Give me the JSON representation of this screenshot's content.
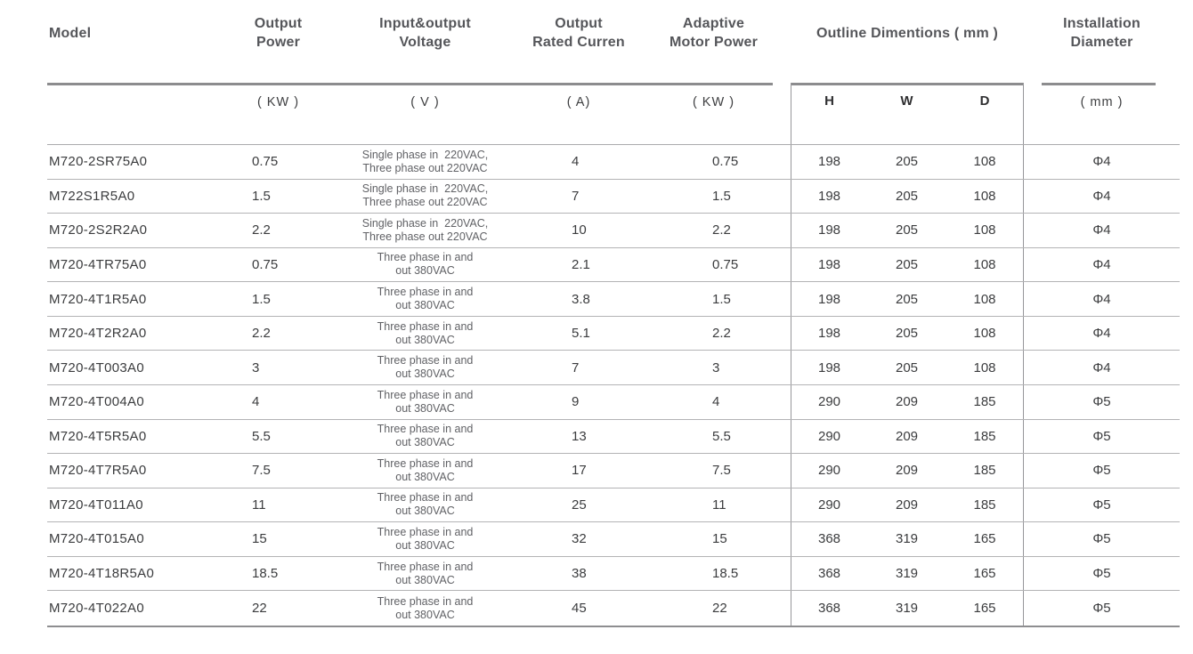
{
  "header": {
    "model": {
      "label": "Model"
    },
    "output_power": {
      "line1": "Output",
      "line2": "Power",
      "unit": "( KW )"
    },
    "io_voltage": {
      "line1": "Input&output",
      "line2": "Voltage",
      "unit": "( V )"
    },
    "rated_current": {
      "line1": "Output",
      "line2": "Rated Curren",
      "unit": "( A)"
    },
    "adaptive_power": {
      "line1": "Adaptive",
      "line2": "Motor Power",
      "unit": "( KW )"
    },
    "outline_dimensions": {
      "label": "Outline Dimentions ( mm )",
      "h": "H",
      "w": "W",
      "d": "D"
    },
    "installation": {
      "line1": "Installation",
      "line2": "Diameter",
      "unit": "( mm )"
    }
  },
  "rows": [
    {
      "model": "M720-2SR75A0",
      "power": "0.75",
      "voltage": [
        "Single phase in  220VAC,",
        "Three phase out 220VAC"
      ],
      "current": "4",
      "adaptive": "0.75",
      "h": "198",
      "w": "205",
      "d": "108",
      "dia": "Φ4"
    },
    {
      "model": "M722S1R5A0",
      "power": "1.5",
      "voltage": [
        "Single phase in  220VAC,",
        "Three phase out 220VAC"
      ],
      "current": "7",
      "adaptive": "1.5",
      "h": "198",
      "w": "205",
      "d": "108",
      "dia": "Φ4"
    },
    {
      "model": "M720-2S2R2A0",
      "power": "2.2",
      "voltage": [
        "Single phase in  220VAC,",
        "Three phase out 220VAC"
      ],
      "current": "10",
      "adaptive": "2.2",
      "h": "198",
      "w": "205",
      "d": "108",
      "dia": "Φ4"
    },
    {
      "model": "M720-4TR75A0",
      "power": "0.75",
      "voltage": [
        "Three phase in and",
        "out 380VAC"
      ],
      "current": "2.1",
      "adaptive": "0.75",
      "h": "198",
      "w": "205",
      "d": "108",
      "dia": "Φ4"
    },
    {
      "model": "M720-4T1R5A0",
      "power": "1.5",
      "voltage": [
        "Three phase in and",
        "out 380VAC"
      ],
      "current": "3.8",
      "adaptive": "1.5",
      "h": "198",
      "w": "205",
      "d": "108",
      "dia": "Φ4"
    },
    {
      "model": "M720-4T2R2A0",
      "power": "2.2",
      "voltage": [
        "Three phase in and",
        "out 380VAC"
      ],
      "current": "5.1",
      "adaptive": "2.2",
      "h": "198",
      "w": "205",
      "d": "108",
      "dia": "Φ4"
    },
    {
      "model": "M720-4T003A0",
      "power": "3",
      "voltage": [
        "Three phase in and",
        "out 380VAC"
      ],
      "current": "7",
      "adaptive": "3",
      "h": "198",
      "w": "205",
      "d": "108",
      "dia": "Φ4"
    },
    {
      "model": "M720-4T004A0",
      "power": "4",
      "voltage": [
        "Three phase in and",
        "out 380VAC"
      ],
      "current": "9",
      "adaptive": "4",
      "h": "290",
      "w": "209",
      "d": "185",
      "dia": "Φ5"
    },
    {
      "model": "M720-4T5R5A0",
      "power": "5.5",
      "voltage": [
        "Three phase in and",
        "out 380VAC"
      ],
      "current": "13",
      "adaptive": "5.5",
      "h": "290",
      "w": "209",
      "d": "185",
      "dia": "Φ5"
    },
    {
      "model": "M720-4T7R5A0",
      "power": "7.5",
      "voltage": [
        "Three phase in and",
        "out 380VAC"
      ],
      "current": "17",
      "adaptive": "7.5",
      "h": "290",
      "w": "209",
      "d": "185",
      "dia": "Φ5"
    },
    {
      "model": "M720-4T011A0",
      "power": "11",
      "voltage": [
        "Three phase in and",
        "out 380VAC"
      ],
      "current": "25",
      "adaptive": "11",
      "h": "290",
      "w": "209",
      "d": "185",
      "dia": "Φ5"
    },
    {
      "model": "M720-4T015A0",
      "power": "15",
      "voltage": [
        "Three phase in and",
        "out 380VAC"
      ],
      "current": "32",
      "adaptive": "15",
      "h": "368",
      "w": "319",
      "d": "165",
      "dia": "Φ5"
    },
    {
      "model": "M720-4T18R5A0",
      "power": "18.5",
      "voltage": [
        "Three phase in and",
        "out 380VAC"
      ],
      "current": "38",
      "adaptive": "18.5",
      "h": "368",
      "w": "319",
      "d": "165",
      "dia": "Φ5"
    },
    {
      "model": "M720-4T022A0",
      "power": "22",
      "voltage": [
        "Three phase in and",
        "out 380VAC"
      ],
      "current": "45",
      "adaptive": "22",
      "h": "368",
      "w": "319",
      "d": "165",
      "dia": "Φ5"
    }
  ]
}
